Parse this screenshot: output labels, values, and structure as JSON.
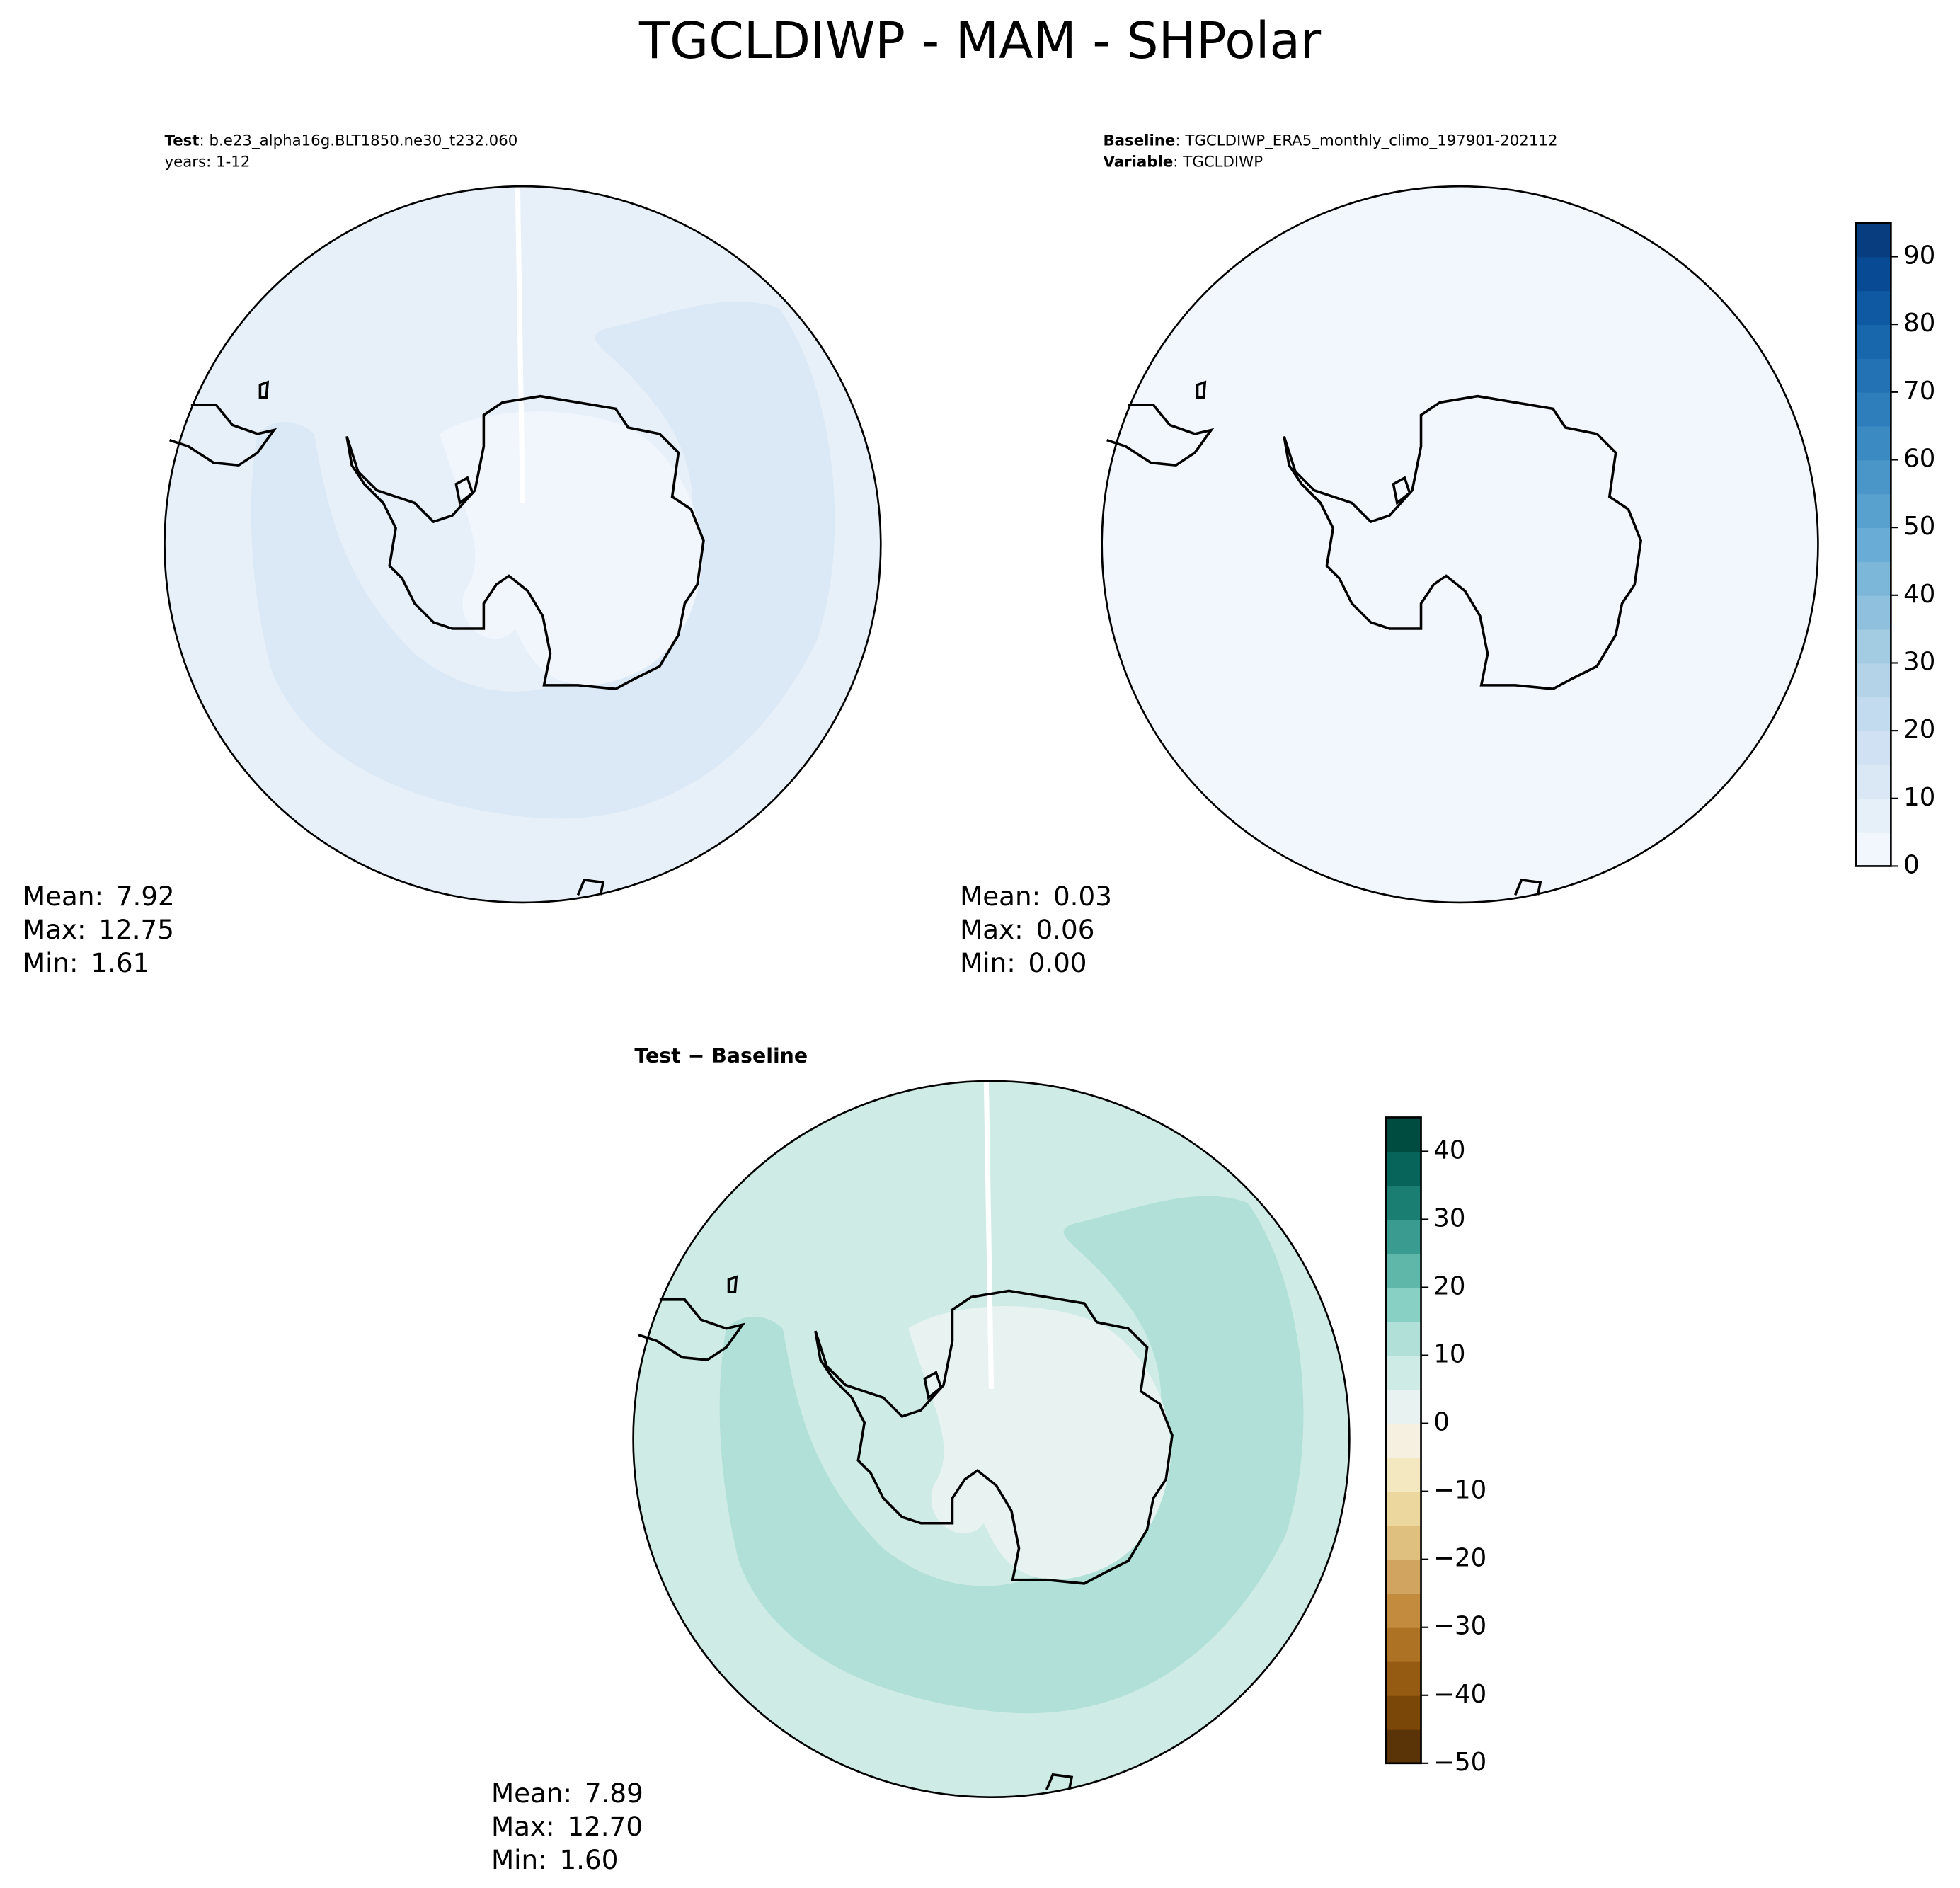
{
  "title": "TGCLDIWP - MAM - SHPolar",
  "panels": [
    {
      "header": [
        {
          "bold": "Test",
          "text": ": b.e23_alpha16g.BLT1850.ne30_t232.060"
        },
        {
          "text": "years: 1-12"
        }
      ],
      "stats": [
        {
          "label": "Mean:",
          "value": "7.92"
        },
        {
          "label": "Max:",
          "value": "12.75"
        },
        {
          "label": "Min:",
          "value": "1.61"
        }
      ]
    },
    {
      "header": [
        {
          "bold": "Baseline",
          "text": ": TGCLDIWP_ERA5_monthly_climo_197901-202112"
        },
        {
          "bold": "Variable",
          "text": ": TGCLDIWP"
        }
      ],
      "stats": [
        {
          "label": "Mean:",
          "value": "0.03"
        },
        {
          "label": "Max:",
          "value": "0.06"
        },
        {
          "label": "Min:",
          "value": "0.00"
        }
      ]
    },
    {
      "title": {
        "bold": "Test",
        "text": " − Baseline"
      },
      "stats": [
        {
          "label": "Mean:",
          "value": "7.89"
        },
        {
          "label": "Max:",
          "value": "12.70"
        },
        {
          "label": "Min:",
          "value": "1.60"
        }
      ]
    }
  ],
  "colorbars": [
    {
      "vlim": [
        0,
        95
      ],
      "ticks": [
        0,
        10,
        20,
        30,
        40,
        50,
        60,
        70,
        80,
        90
      ],
      "colors": [
        "#f2f7fd",
        "#e6f0f9",
        "#dae8f5",
        "#cfe1f2",
        "#c3dbee",
        "#b4d3e8",
        "#a3cce3",
        "#8fc1de",
        "#7cb7da",
        "#69acd5",
        "#58a1cf",
        "#4a96c9",
        "#3c8ac2",
        "#2f7ebc",
        "#2372b4",
        "#1866ac",
        "#0e59a2",
        "#084b94",
        "#083d7f"
      ]
    },
    {
      "vlim": [
        -50,
        45
      ],
      "ticks": [
        {
          "value": -50,
          "label": "−50"
        },
        {
          "value": -40,
          "label": "−40"
        },
        {
          "value": -30,
          "label": "−30"
        },
        {
          "value": -20,
          "label": "−20"
        },
        {
          "value": -10,
          "label": "−10"
        },
        0,
        10,
        20,
        30,
        40
      ],
      "colors": [
        "#5a3306",
        "#7a4709",
        "#955b12",
        "#ad7224",
        "#c28b3e",
        "#d1a45f",
        "#e0c07f",
        "#ecd89f",
        "#f4e8c0",
        "#f6f0e0",
        "#e8f3f1",
        "#cfebe6",
        "#b0e0d8",
        "#88d0c3",
        "#5eb7a9",
        "#3a9c90",
        "#1b7e73",
        "#06645a",
        "#004c40"
      ]
    }
  ]
}
